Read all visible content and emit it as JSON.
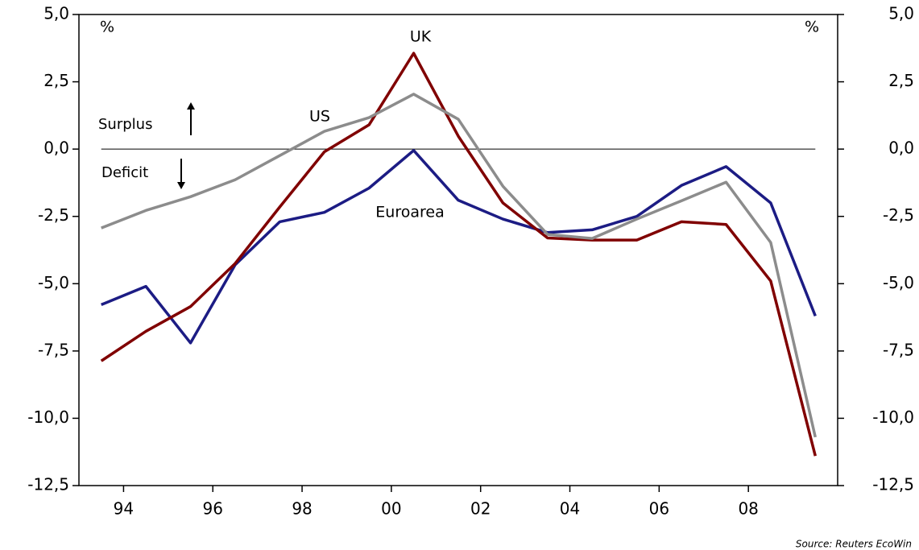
{
  "chart_data": {
    "type": "line",
    "annotations": {
      "uk": "UK",
      "us": "US",
      "euro": "Euroarea",
      "surplus": "Surplus",
      "deficit": "Deficit",
      "unit_left": "%",
      "unit_right": "%",
      "source": "Source: Reuters EcoWin"
    },
    "x": [
      1993.5,
      1994.5,
      1995.5,
      1996.5,
      1997.5,
      1998.5,
      1999.5,
      2000.5,
      2001.5,
      2002.5,
      2003.5,
      2004.5,
      2005.5,
      2006.5,
      2007.5,
      2008.5,
      2009.5
    ],
    "series": [
      {
        "name": "Euroarea",
        "color": "#1c1c84",
        "values": [
          -5.78,
          -5.1,
          -7.2,
          -4.3,
          -2.7,
          -2.35,
          -1.45,
          -0.05,
          -1.9,
          -2.6,
          -3.1,
          -3.0,
          -2.5,
          -1.35,
          -0.65,
          -2.0,
          -6.2
        ]
      },
      {
        "name": "UK",
        "color": "#800000",
        "values": [
          -7.87,
          -6.77,
          -5.85,
          -4.25,
          -2.15,
          -0.1,
          0.9,
          3.56,
          0.48,
          -2.0,
          -3.3,
          -3.38,
          -3.38,
          -2.7,
          -2.8,
          -4.9,
          -11.4
        ]
      },
      {
        "name": "US",
        "color": "#8c8c8c",
        "values": [
          -2.93,
          -2.28,
          -1.77,
          -1.14,
          -0.24,
          0.66,
          1.17,
          2.04,
          1.11,
          -1.38,
          -3.17,
          -3.32,
          -2.6,
          -1.92,
          -1.23,
          -3.47,
          -10.7
        ]
      }
    ],
    "xlim": [
      1993,
      2010
    ],
    "xticks": [
      {
        "value": 1994,
        "label": "94"
      },
      {
        "value": 1996,
        "label": "96"
      },
      {
        "value": 1998,
        "label": "98"
      },
      {
        "value": 2000,
        "label": "00"
      },
      {
        "value": 2002,
        "label": "02"
      },
      {
        "value": 2004,
        "label": "04"
      },
      {
        "value": 2006,
        "label": "06"
      },
      {
        "value": 2008,
        "label": "08"
      }
    ],
    "ylim": [
      -12.5,
      5
    ],
    "yticks": [
      {
        "value": 5,
        "label": "5,0"
      },
      {
        "value": 2.5,
        "label": "2,5"
      },
      {
        "value": 0,
        "label": "0,0"
      },
      {
        "value": -2.5,
        "label": "-2,5"
      },
      {
        "value": -5,
        "label": "-5,0"
      },
      {
        "value": -7.5,
        "label": "-7,5"
      },
      {
        "value": -10,
        "label": "-10,0"
      },
      {
        "value": -12.5,
        "label": "-12,5"
      }
    ]
  }
}
